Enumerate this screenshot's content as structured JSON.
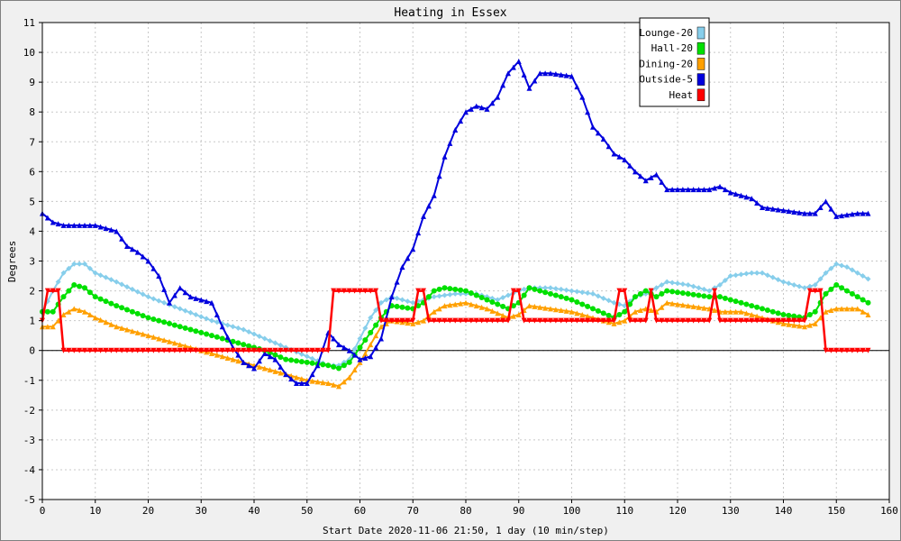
{
  "chart_data": {
    "type": "line",
    "title": "Heating in Essex",
    "xlabel": "Start Date 2020-11-06 21:50, 1 day (10 min/step)",
    "ylabel": "Degrees",
    "xlim": [
      0,
      160
    ],
    "ylim": [
      -5,
      11
    ],
    "x_ticks": [
      0,
      10,
      20,
      30,
      40,
      50,
      60,
      70,
      80,
      90,
      100,
      110,
      120,
      130,
      140,
      150,
      160
    ],
    "y_ticks": [
      -5,
      -4,
      -3,
      -2,
      -1,
      0,
      1,
      2,
      3,
      4,
      5,
      6,
      7,
      8,
      9,
      10,
      11
    ],
    "grid": true,
    "legend_position": "top-right",
    "series": [
      {
        "name": "Lounge-20",
        "color": "#87ceeb",
        "marker": "diamond",
        "points": [
          [
            0,
            1.3
          ],
          [
            2,
            2.0
          ],
          [
            4,
            2.6
          ],
          [
            6,
            2.9
          ],
          [
            8,
            2.9
          ],
          [
            10,
            2.6
          ],
          [
            14,
            2.3
          ],
          [
            20,
            1.8
          ],
          [
            26,
            1.4
          ],
          [
            32,
            1.0
          ],
          [
            38,
            0.7
          ],
          [
            42,
            0.4
          ],
          [
            46,
            0.1
          ],
          [
            50,
            -0.2
          ],
          [
            54,
            -0.5
          ],
          [
            56,
            -0.5
          ],
          [
            58,
            -0.3
          ],
          [
            60,
            0.4
          ],
          [
            62,
            1.1
          ],
          [
            64,
            1.6
          ],
          [
            66,
            1.8
          ],
          [
            70,
            1.6
          ],
          [
            74,
            1.8
          ],
          [
            78,
            1.9
          ],
          [
            82,
            1.9
          ],
          [
            86,
            1.7
          ],
          [
            90,
            2.0
          ],
          [
            92,
            2.1
          ],
          [
            96,
            2.1
          ],
          [
            100,
            2.0
          ],
          [
            104,
            1.9
          ],
          [
            108,
            1.6
          ],
          [
            110,
            1.5
          ],
          [
            112,
            1.8
          ],
          [
            114,
            1.9
          ],
          [
            116,
            2.1
          ],
          [
            118,
            2.3
          ],
          [
            122,
            2.2
          ],
          [
            126,
            2.0
          ],
          [
            128,
            2.2
          ],
          [
            130,
            2.5
          ],
          [
            134,
            2.6
          ],
          [
            136,
            2.6
          ],
          [
            140,
            2.3
          ],
          [
            144,
            2.1
          ],
          [
            146,
            2.2
          ],
          [
            148,
            2.6
          ],
          [
            150,
            2.9
          ],
          [
            152,
            2.8
          ],
          [
            154,
            2.6
          ],
          [
            156,
            2.4
          ]
        ]
      },
      {
        "name": "Hall-20",
        "color": "#00e000",
        "marker": "circle",
        "points": [
          [
            0,
            1.3
          ],
          [
            2,
            1.3
          ],
          [
            4,
            1.8
          ],
          [
            6,
            2.2
          ],
          [
            8,
            2.1
          ],
          [
            10,
            1.8
          ],
          [
            14,
            1.5
          ],
          [
            20,
            1.1
          ],
          [
            26,
            0.8
          ],
          [
            32,
            0.5
          ],
          [
            38,
            0.2
          ],
          [
            42,
            0.0
          ],
          [
            46,
            -0.3
          ],
          [
            50,
            -0.4
          ],
          [
            54,
            -0.5
          ],
          [
            56,
            -0.6
          ],
          [
            58,
            -0.4
          ],
          [
            60,
            0.1
          ],
          [
            62,
            0.6
          ],
          [
            64,
            1.1
          ],
          [
            66,
            1.5
          ],
          [
            70,
            1.4
          ],
          [
            72,
            1.6
          ],
          [
            74,
            2.0
          ],
          [
            76,
            2.1
          ],
          [
            80,
            2.0
          ],
          [
            84,
            1.7
          ],
          [
            88,
            1.4
          ],
          [
            90,
            1.6
          ],
          [
            92,
            2.1
          ],
          [
            96,
            1.9
          ],
          [
            100,
            1.7
          ],
          [
            104,
            1.4
          ],
          [
            108,
            1.1
          ],
          [
            110,
            1.3
          ],
          [
            112,
            1.8
          ],
          [
            114,
            2.0
          ],
          [
            116,
            1.8
          ],
          [
            118,
            2.0
          ],
          [
            122,
            1.9
          ],
          [
            126,
            1.8
          ],
          [
            128,
            1.8
          ],
          [
            132,
            1.6
          ],
          [
            136,
            1.4
          ],
          [
            140,
            1.2
          ],
          [
            144,
            1.1
          ],
          [
            146,
            1.3
          ],
          [
            148,
            1.9
          ],
          [
            150,
            2.2
          ],
          [
            152,
            2.0
          ],
          [
            154,
            1.8
          ],
          [
            156,
            1.6
          ]
        ]
      },
      {
        "name": "Dining-20",
        "color": "#ffa000",
        "marker": "triangle",
        "points": [
          [
            0,
            0.8
          ],
          [
            2,
            0.8
          ],
          [
            4,
            1.2
          ],
          [
            6,
            1.4
          ],
          [
            8,
            1.3
          ],
          [
            10,
            1.1
          ],
          [
            14,
            0.8
          ],
          [
            20,
            0.5
          ],
          [
            26,
            0.2
          ],
          [
            32,
            -0.1
          ],
          [
            38,
            -0.4
          ],
          [
            42,
            -0.6
          ],
          [
            46,
            -0.8
          ],
          [
            50,
            -1.0
          ],
          [
            54,
            -1.1
          ],
          [
            56,
            -1.2
          ],
          [
            58,
            -0.9
          ],
          [
            60,
            -0.4
          ],
          [
            62,
            0.2
          ],
          [
            64,
            0.8
          ],
          [
            66,
            1.0
          ],
          [
            70,
            0.9
          ],
          [
            72,
            1.0
          ],
          [
            74,
            1.3
          ],
          [
            76,
            1.5
          ],
          [
            80,
            1.6
          ],
          [
            84,
            1.4
          ],
          [
            88,
            1.1
          ],
          [
            90,
            1.2
          ],
          [
            92,
            1.5
          ],
          [
            96,
            1.4
          ],
          [
            100,
            1.3
          ],
          [
            104,
            1.1
          ],
          [
            108,
            0.9
          ],
          [
            110,
            1.0
          ],
          [
            112,
            1.3
          ],
          [
            114,
            1.4
          ],
          [
            116,
            1.3
          ],
          [
            118,
            1.6
          ],
          [
            122,
            1.5
          ],
          [
            126,
            1.4
          ],
          [
            128,
            1.3
          ],
          [
            132,
            1.3
          ],
          [
            136,
            1.1
          ],
          [
            140,
            0.9
          ],
          [
            144,
            0.8
          ],
          [
            146,
            0.9
          ],
          [
            148,
            1.3
          ],
          [
            150,
            1.4
          ],
          [
            152,
            1.4
          ],
          [
            154,
            1.4
          ],
          [
            156,
            1.2
          ]
        ]
      },
      {
        "name": "Outside-5",
        "color": "#0000dd",
        "marker": "triangle",
        "points": [
          [
            0,
            4.6
          ],
          [
            2,
            4.3
          ],
          [
            4,
            4.2
          ],
          [
            8,
            4.2
          ],
          [
            10,
            4.2
          ],
          [
            14,
            4.0
          ],
          [
            16,
            3.5
          ],
          [
            18,
            3.3
          ],
          [
            20,
            3.0
          ],
          [
            22,
            2.5
          ],
          [
            24,
            1.6
          ],
          [
            26,
            2.1
          ],
          [
            28,
            1.8
          ],
          [
            30,
            1.7
          ],
          [
            32,
            1.6
          ],
          [
            34,
            0.8
          ],
          [
            36,
            0.1
          ],
          [
            38,
            -0.4
          ],
          [
            40,
            -0.6
          ],
          [
            42,
            -0.1
          ],
          [
            44,
            -0.3
          ],
          [
            46,
            -0.8
          ],
          [
            48,
            -1.1
          ],
          [
            50,
            -1.1
          ],
          [
            52,
            -0.5
          ],
          [
            54,
            0.6
          ],
          [
            56,
            0.2
          ],
          [
            58,
            0.0
          ],
          [
            60,
            -0.3
          ],
          [
            62,
            -0.2
          ],
          [
            64,
            0.4
          ],
          [
            66,
            1.8
          ],
          [
            68,
            2.8
          ],
          [
            70,
            3.4
          ],
          [
            72,
            4.5
          ],
          [
            74,
            5.2
          ],
          [
            76,
            6.5
          ],
          [
            78,
            7.4
          ],
          [
            80,
            8.0
          ],
          [
            82,
            8.2
          ],
          [
            84,
            8.1
          ],
          [
            86,
            8.5
          ],
          [
            88,
            9.3
          ],
          [
            90,
            9.7
          ],
          [
            92,
            8.8
          ],
          [
            94,
            9.3
          ],
          [
            96,
            9.3
          ],
          [
            100,
            9.2
          ],
          [
            102,
            8.5
          ],
          [
            104,
            7.5
          ],
          [
            106,
            7.1
          ],
          [
            108,
            6.6
          ],
          [
            110,
            6.4
          ],
          [
            112,
            6.0
          ],
          [
            114,
            5.7
          ],
          [
            116,
            5.9
          ],
          [
            118,
            5.4
          ],
          [
            120,
            5.4
          ],
          [
            124,
            5.4
          ],
          [
            126,
            5.4
          ],
          [
            128,
            5.5
          ],
          [
            130,
            5.3
          ],
          [
            134,
            5.1
          ],
          [
            136,
            4.8
          ],
          [
            140,
            4.7
          ],
          [
            144,
            4.6
          ],
          [
            146,
            4.6
          ],
          [
            148,
            5.0
          ],
          [
            150,
            4.5
          ],
          [
            154,
            4.6
          ],
          [
            156,
            4.6
          ]
        ]
      },
      {
        "name": "Heat",
        "color": "#ff0000",
        "marker": "square",
        "points": [
          [
            0,
            1
          ],
          [
            1,
            2
          ],
          [
            3,
            2
          ],
          [
            4,
            0
          ],
          [
            54,
            0
          ],
          [
            55,
            2
          ],
          [
            63,
            2
          ],
          [
            64,
            1
          ],
          [
            70,
            1
          ],
          [
            71,
            2
          ],
          [
            72,
            2
          ],
          [
            73,
            1
          ],
          [
            88,
            1
          ],
          [
            89,
            2
          ],
          [
            90,
            2
          ],
          [
            91,
            1
          ],
          [
            108,
            1
          ],
          [
            109,
            2
          ],
          [
            110,
            2
          ],
          [
            111,
            1
          ],
          [
            114,
            1
          ],
          [
            115,
            2
          ],
          [
            116,
            1
          ],
          [
            126,
            1
          ],
          [
            127,
            2
          ],
          [
            128,
            1
          ],
          [
            144,
            1
          ],
          [
            145,
            2
          ],
          [
            147,
            2
          ],
          [
            148,
            0
          ],
          [
            156,
            0
          ]
        ]
      }
    ]
  }
}
